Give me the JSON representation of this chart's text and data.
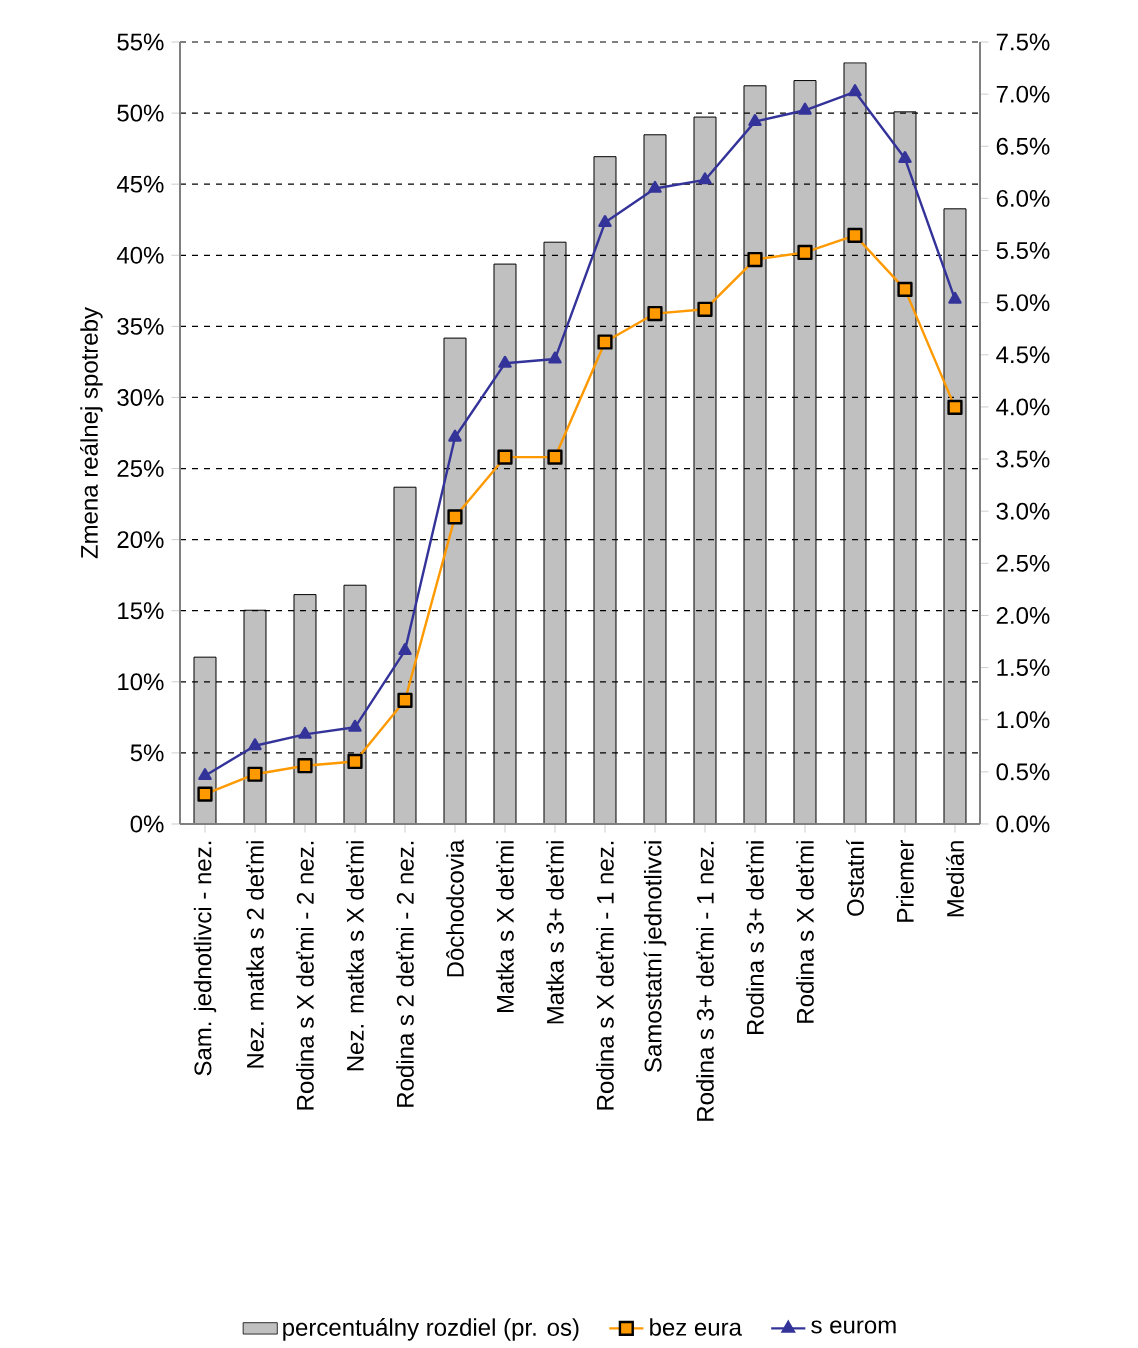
{
  "chart_data": {
    "type": "line",
    "ylabel": "Zmena reálnej spotreby",
    "categories": [
      "Sam. jednotlivci - nez.",
      "Nez. matka s 2 deťmi",
      "Rodina s X deťmi - 2 nez.",
      "Nez. matka s X deťmi",
      "Rodina s 2 deťmi - 2 nez.",
      "Dôchodcovia",
      "Matka s X deťmi",
      "Matka s 3+ deťmi",
      "Rodina s X deťmi - 1 nez.",
      "Samostatní jednotlivci",
      "Rodina s 3+ deťmi - 1 nez.",
      "Rodina s 3+ deťmi",
      "Rodina s X deťmi",
      "Ostatní",
      "Priemer",
      "Medián"
    ],
    "series": [
      {
        "name": "percentuálny rozdiel (pr. os)",
        "type": "bar",
        "axis": "y2",
        "color": "#c0c0c0",
        "values": [
          1.6,
          2.05,
          2.2,
          2.29,
          3.23,
          4.66,
          5.37,
          5.58,
          6.4,
          6.61,
          6.78,
          7.08,
          7.13,
          7.3,
          6.83,
          5.9
        ]
      },
      {
        "name": "bez eura",
        "color": "#ff9900",
        "marker": "square",
        "values": [
          2.1,
          3.5,
          4.1,
          4.4,
          8.7,
          21.6,
          25.8,
          25.8,
          33.9,
          35.9,
          36.2,
          39.7,
          40.2,
          41.4,
          37.6,
          29.3
        ]
      },
      {
        "name": "s eurom",
        "color": "#333399",
        "marker": "triangle",
        "values": [
          3.4,
          5.5,
          6.3,
          6.8,
          12.2,
          27.2,
          32.4,
          32.7,
          42.3,
          44.7,
          45.3,
          49.4,
          50.2,
          51.5,
          46.8,
          36.9
        ]
      }
    ],
    "ylim": [
      0,
      55
    ],
    "yticks": [
      {
        "value": 0,
        "label": "0%"
      },
      {
        "value": 5,
        "label": "5%"
      },
      {
        "value": 10,
        "label": "10%"
      },
      {
        "value": 15,
        "label": "15%"
      },
      {
        "value": 20,
        "label": "20%"
      },
      {
        "value": 25,
        "label": "25%"
      },
      {
        "value": 30,
        "label": "30%"
      },
      {
        "value": 35,
        "label": "35%"
      },
      {
        "value": 40,
        "label": "40%"
      },
      {
        "value": 45,
        "label": "45%"
      },
      {
        "value": 50,
        "label": "50%"
      },
      {
        "value": 55,
        "label": "55%"
      }
    ],
    "y2lim": [
      0,
      7.5
    ],
    "y2ticks": [
      {
        "value": 0,
        "label": "0.0%"
      },
      {
        "value": 0.5,
        "label": "0.5%"
      },
      {
        "value": 1,
        "label": "1.0%"
      },
      {
        "value": 1.5,
        "label": "1.5%"
      },
      {
        "value": 2,
        "label": "2.0%"
      },
      {
        "value": 2.5,
        "label": "2.5%"
      },
      {
        "value": 3,
        "label": "3.0%"
      },
      {
        "value": 3.5,
        "label": "3.5%"
      },
      {
        "value": 4,
        "label": "4.0%"
      },
      {
        "value": 4.5,
        "label": "4.5%"
      },
      {
        "value": 5,
        "label": "5.0%"
      },
      {
        "value": 5.5,
        "label": "5.5%"
      },
      {
        "value": 6,
        "label": "6.0%"
      },
      {
        "value": 6.5,
        "label": "6.5%"
      },
      {
        "value": 7,
        "label": "7.0%"
      },
      {
        "value": 7.5,
        "label": "7.5%"
      }
    ],
    "grid": "y",
    "legend": "bottom"
  }
}
